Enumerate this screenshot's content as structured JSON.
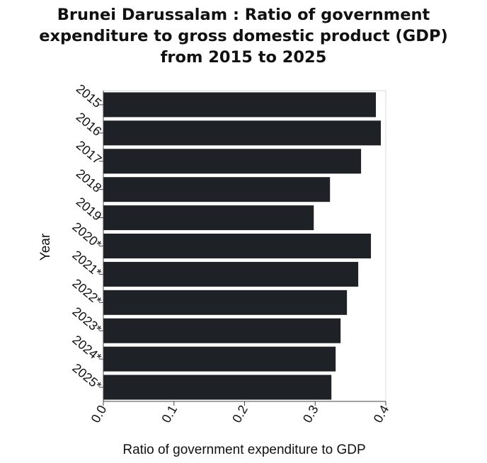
{
  "chart_data": {
    "type": "bar",
    "orientation": "horizontal",
    "title": "Brunei Darussalam : Ratio of government\nexpenditure to gross domestic product (GDP)\nfrom 2015 to 2025",
    "xlabel": "Ratio of government expenditure to GDP",
    "ylabel": "Year",
    "categories": [
      "2015",
      "2016",
      "2017",
      "2018",
      "2019",
      "2020*",
      "2021*",
      "2022*",
      "2023*",
      "2024*",
      "2025*"
    ],
    "values": [
      0.386,
      0.393,
      0.365,
      0.321,
      0.298,
      0.379,
      0.361,
      0.345,
      0.336,
      0.329,
      0.323
    ],
    "xlim": [
      0,
      0.4
    ],
    "xticks": [
      "0.0",
      "0.1",
      "0.2",
      "0.3",
      "0.4"
    ],
    "grid": false,
    "legend": "none",
    "bar_color": "#1e2227"
  }
}
